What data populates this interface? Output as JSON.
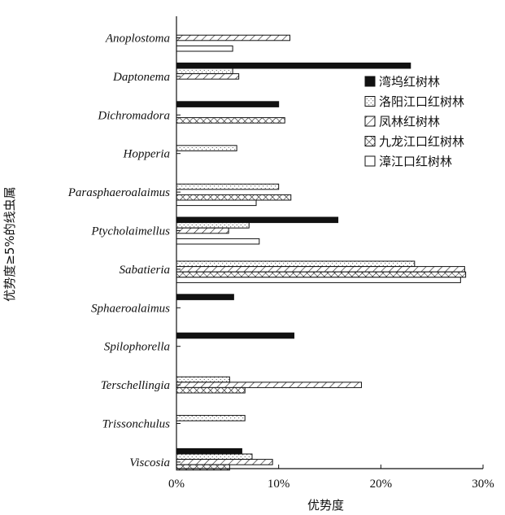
{
  "chart_data": {
    "type": "bar",
    "orientation": "horizontal",
    "xlabel": "优势度",
    "ylabel": "优势度≥5%的线虫属",
    "xlim": [
      0,
      30
    ],
    "xticks": [
      "0%",
      "10%",
      "20%",
      "30%"
    ],
    "legend_position": "right",
    "categories": [
      "Anoplostoma",
      "Daptonema",
      "Dichromadora",
      "Hopperia",
      "Parasphaeroalaimus",
      "Ptycholaimellus",
      "Sabatieria",
      "Sphaeroalaimus",
      "Spilophorella",
      "Terschellingia",
      "Trissonchulus",
      "Viscosia"
    ],
    "series": [
      {
        "name": "湾坞红树林",
        "pattern": "solid",
        "values": [
          0,
          22.9,
          10.0,
          0,
          0,
          15.8,
          0,
          5.6,
          11.5,
          0,
          0,
          6.4
        ]
      },
      {
        "name": "洛阳江口红树林",
        "pattern": "dots",
        "values": [
          0,
          5.5,
          0,
          5.9,
          10.0,
          7.1,
          23.3,
          0,
          0,
          5.2,
          6.7,
          7.4
        ]
      },
      {
        "name": "凤林红树林",
        "pattern": "hatch",
        "values": [
          11.1,
          6.1,
          0,
          0,
          0,
          5.1,
          28.2,
          0,
          0,
          18.1,
          0,
          9.4
        ]
      },
      {
        "name": "九龙江口红树林",
        "pattern": "crosshatch",
        "values": [
          0,
          0,
          10.6,
          0,
          11.2,
          0,
          28.3,
          0,
          0,
          6.7,
          0,
          5.2
        ]
      },
      {
        "name": "漳江口红树林",
        "pattern": "empty",
        "values": [
          5.5,
          0,
          0,
          0,
          7.8,
          8.1,
          27.8,
          0,
          0,
          0,
          0,
          0
        ]
      }
    ]
  }
}
